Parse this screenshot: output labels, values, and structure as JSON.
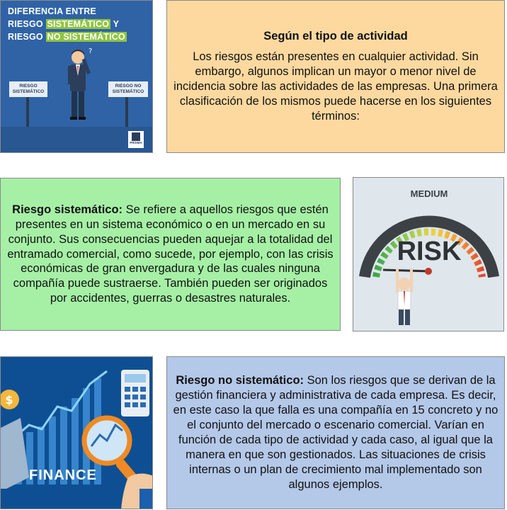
{
  "image1": {
    "line1": "DIFERENCIA ENTRE",
    "line2_prefix": "RIESGO",
    "line2_highlight": "SISTEMÁTICO",
    "line2_suffix": "Y",
    "line3_prefix": "RIESGO",
    "line3_highlight": "NO SISTEMÁTICO",
    "sign_left": "RIESGO SISTEMÁTICO",
    "sign_right": "RIESGO NO SISTEMÁTICO",
    "logo_text": "PRISMA"
  },
  "box1": {
    "title": "Según el tipo de actividad",
    "body": "Los riesgos están presentes en cualquier actividad. Sin embargo, algunos implican un mayor o menor nivel de incidencia sobre las actividades de las empresas. Una primera clasificación de los mismos puede hacerse en los siguientes términos:"
  },
  "box2": {
    "lead": "Riesgo sistemático:",
    "body": " Se refiere a aquellos riesgos que estén presentes en un sistema económico o en un mercado en su conjunto. Sus consecuencias pueden aquejar a la totalidad del entramado comercial, como sucede, por ejemplo, con las crisis económicas de gran envergadura y de las cuales ninguna compañía puede sustraerse. También pueden ser originados por accidentes, guerras o desastres naturales."
  },
  "image2": {
    "gauge_label": "MEDIUM",
    "word": "RISK"
  },
  "box3": {
    "lead": "Riesgo no sistemático:",
    "body": " Son los riesgos que se derivan de la gestión financiera y administrativa de cada empresa. Es decir, en este caso la que falla es una compañía en 15 concreto y no el conjunto del mercado o escenario comercial. Varían en función de cada tipo de actividad y cada caso, al igual que la manera en que son gestionados. Las situaciones de crisis internas o un plan de crecimiento mal implementado son algunos ejemplos."
  },
  "image3": {
    "word": "FINANCE"
  },
  "colors": {
    "box1_bg": "#fdd9a0",
    "box2_bg": "#a6f0a6",
    "box3_bg": "#b4c8e8",
    "highlight_green": "#8fc43f"
  }
}
